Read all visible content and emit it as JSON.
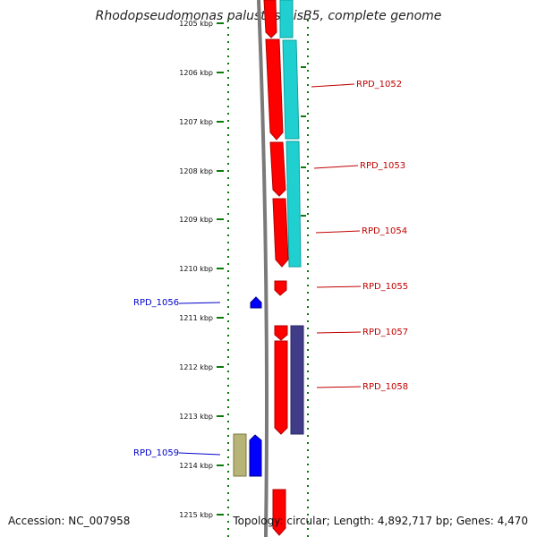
{
  "title": "Rhodopseudomonas palustris BisB5, complete genome",
  "footer": {
    "accession": "Accession: NC_007958",
    "topology": "Topology: circular; Length: 4,892,717 bp; Genes: 4,470"
  },
  "colors": {
    "forward_cds": "#ff0000",
    "forward_feature": "#20d0d0",
    "forward_feature_2": "#403c88",
    "reverse_cds": "#0000ff",
    "reverse_feature": "#b8b478",
    "backbone": "#7a7a7a",
    "tick": "#0a7a0a",
    "forward_label": "#c00000",
    "reverse_label": "#0000cc"
  },
  "axis": {
    "tick_labels": [
      "1205 kbp",
      "1206 kbp",
      "1207 kbp",
      "1208 kbp",
      "1209 kbp",
      "1210 kbp",
      "1211 kbp",
      "1212 kbp",
      "1213 kbp",
      "1214 kbp",
      "1215 kbp"
    ]
  },
  "genes": [
    {
      "label": "RPD_1052",
      "strand": "forward"
    },
    {
      "label": "RPD_1053",
      "strand": "forward"
    },
    {
      "label": "RPD_1054",
      "strand": "forward"
    },
    {
      "label": "RPD_1055",
      "strand": "forward"
    },
    {
      "label": "RPD_1056",
      "strand": "reverse"
    },
    {
      "label": "RPD_1057",
      "strand": "forward"
    },
    {
      "label": "RPD_1058",
      "strand": "forward"
    },
    {
      "label": "RPD_1059",
      "strand": "reverse"
    }
  ]
}
